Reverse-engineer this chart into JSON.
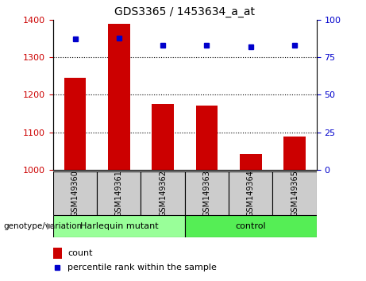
{
  "title": "GDS3365 / 1453634_a_at",
  "samples": [
    "GSM149360",
    "GSM149361",
    "GSM149362",
    "GSM149363",
    "GSM149364",
    "GSM149365"
  ],
  "counts": [
    1245,
    1390,
    1175,
    1172,
    1042,
    1090
  ],
  "percentile_ranks": [
    87,
    88,
    83,
    83,
    82,
    83
  ],
  "ylim_left": [
    1000,
    1400
  ],
  "ylim_right": [
    0,
    100
  ],
  "yticks_left": [
    1000,
    1100,
    1200,
    1300,
    1400
  ],
  "yticks_right": [
    0,
    25,
    50,
    75,
    100
  ],
  "bar_color": "#cc0000",
  "dot_color": "#0000cc",
  "bar_bottom": 1000,
  "groups": [
    {
      "label": "Harlequin mutant",
      "start": 0,
      "end": 3,
      "color": "#99ff99"
    },
    {
      "label": "control",
      "start": 3,
      "end": 6,
      "color": "#55ee55"
    }
  ],
  "group_label": "genotype/variation",
  "legend_count_label": "count",
  "legend_percentile_label": "percentile rank within the sample",
  "tick_color_left": "#cc0000",
  "tick_color_right": "#0000cc",
  "grid_color": "#000000",
  "background_color": "#ffffff",
  "plot_bg_color": "#ffffff",
  "sample_box_color": "#cccccc"
}
